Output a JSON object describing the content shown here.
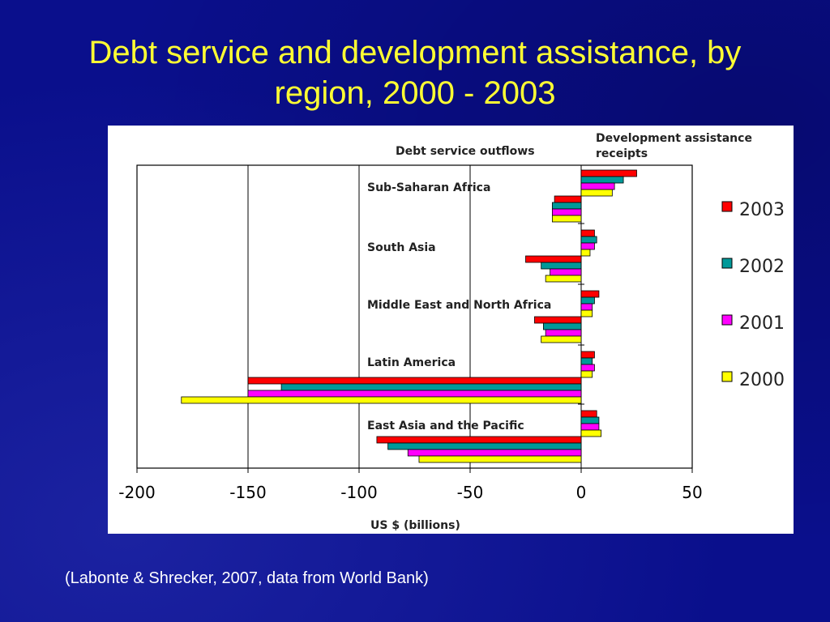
{
  "slide": {
    "title_line1": "Debt service and development assistance, by",
    "title_line2": "region, 2000 - 2003",
    "citation": "(Labonte & Shrecker, 2007, data from World Bank)"
  },
  "chart_data": {
    "type": "bar",
    "orientation": "horizontal",
    "header_left": "Debt service outflows",
    "header_right_line1": "Development assistance",
    "header_right_line2": "receipts",
    "xlabel": "US $ (billions)",
    "xlim": [
      -200,
      50
    ],
    "xticks": [
      -200,
      -150,
      -100,
      -50,
      0,
      50
    ],
    "grid": "vertical",
    "legend_position": "right",
    "categories": [
      "Sub-Saharan Africa",
      "South Asia",
      "Middle East and North Africa",
      "Latin America",
      "East Asia and the Pacific"
    ],
    "series": [
      {
        "name": "2003",
        "color": "#ff0000",
        "assistance": [
          25,
          6,
          8,
          6,
          7
        ],
        "debt": [
          -12,
          -25,
          -21,
          -150,
          -92
        ]
      },
      {
        "name": "2002",
        "color": "#009999",
        "assistance": [
          19,
          7,
          6,
          5,
          8
        ],
        "debt": [
          -13,
          -18,
          -17,
          -135,
          -87
        ]
      },
      {
        "name": "2001",
        "color": "#ff00ff",
        "assistance": [
          15,
          6,
          5,
          6,
          8
        ],
        "debt": [
          -13,
          -14,
          -16,
          -150,
          -78
        ]
      },
      {
        "name": "2000",
        "color": "#ffff00",
        "assistance": [
          14,
          4,
          5,
          5,
          9
        ],
        "debt": [
          -13,
          -16,
          -18,
          -180,
          -73
        ]
      }
    ]
  }
}
